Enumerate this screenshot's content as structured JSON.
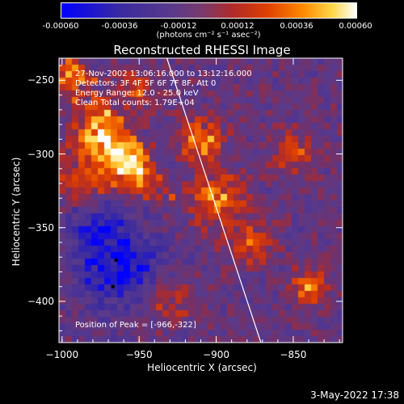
{
  "colorbar": {
    "tick_labels": [
      "-0.00060",
      "-0.00036",
      "-0.00012",
      "0.00012",
      "0.00036",
      "0.00060"
    ],
    "range": [
      -0.0006,
      0.0006
    ],
    "unit_label": "(photons cm⁻² s⁻¹ asec⁻²)"
  },
  "chart_data": {
    "type": "heatmap",
    "title": "Reconstructed RHESSI Image",
    "xlabel": "Heliocentric X (arcsec)",
    "ylabel": "Heliocentric Y (arcsec)",
    "xlim": [
      -1002,
      -818
    ],
    "ylim": [
      -428,
      -235
    ],
    "x_ticks": [
      -1000,
      -950,
      -900,
      -850
    ],
    "y_ticks": [
      -250,
      -300,
      -350,
      -400
    ],
    "x_tick_labels": [
      "−1000",
      "−950",
      "−900",
      "−850"
    ],
    "y_tick_labels": [
      "−250",
      "−300",
      "−350",
      "−400"
    ],
    "annotations": [
      "27-Nov-2002 13:06:16.000 to 13:12:16.000",
      "Detectors: 3F 4F 5F 6F 7F 8F, Att 0",
      "Energy Range: 12.0 - 25.0 keV",
      "Clean    Total counts: 1.79E+04"
    ],
    "peak_label": "Position of Peak = [-966,-322]",
    "peak": [
      -966,
      -322
    ],
    "limb_line": [
      [
        -932,
        -235
      ],
      [
        -871,
        -428
      ]
    ],
    "bright_features": [
      {
        "x": -975,
        "y": -290,
        "intensity": 0.95,
        "spread": 12
      },
      {
        "x": -955,
        "y": -310,
        "intensity": 0.85,
        "spread": 10
      },
      {
        "x": -985,
        "y": -320,
        "intensity": 0.6,
        "spread": 12
      },
      {
        "x": -910,
        "y": -290,
        "intensity": 0.75,
        "spread": 10
      },
      {
        "x": -900,
        "y": -330,
        "intensity": 0.7,
        "spread": 12
      },
      {
        "x": -880,
        "y": -360,
        "intensity": 0.55,
        "spread": 10
      },
      {
        "x": -840,
        "y": -390,
        "intensity": 0.7,
        "spread": 8
      },
      {
        "x": -950,
        "y": -255,
        "intensity": 0.45,
        "spread": 10
      },
      {
        "x": -850,
        "y": -300,
        "intensity": 0.5,
        "spread": 10
      },
      {
        "x": -995,
        "y": -250,
        "intensity": 0.5,
        "spread": 8
      },
      {
        "x": -930,
        "y": -400,
        "intensity": 0.4,
        "spread": 10
      }
    ],
    "dark_features": [
      {
        "x": -965,
        "y": -375,
        "intensity": -0.8,
        "spread": 18
      },
      {
        "x": -980,
        "y": -345,
        "intensity": -0.5,
        "spread": 12
      }
    ],
    "grid": false
  },
  "footer": {
    "date": "3-May-2022 17:38"
  }
}
